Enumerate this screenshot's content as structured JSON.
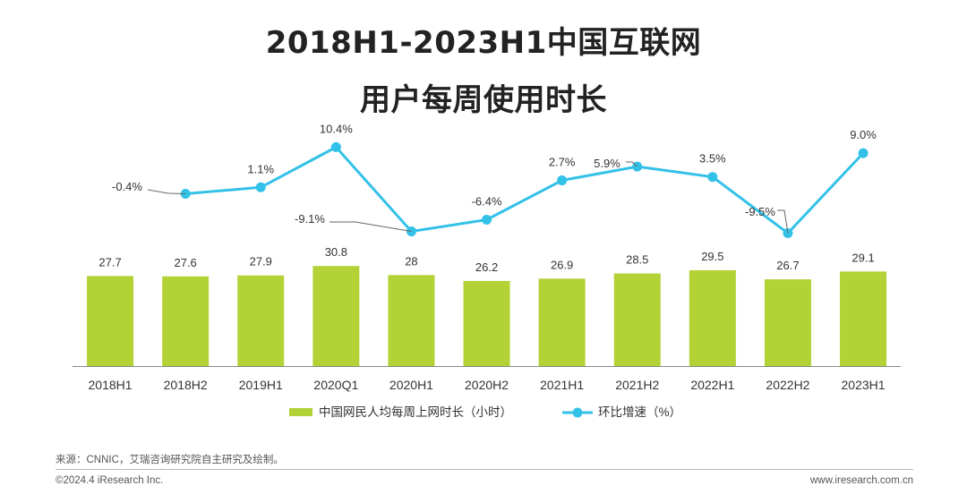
{
  "title": {
    "line1": "2018H1-2023H1中国互联网",
    "line2": "用户每周使用时长"
  },
  "chart_data": {
    "type": "bar",
    "categories": [
      "2018H1",
      "2018H2",
      "2019H1",
      "2020Q1",
      "2020H1",
      "2020H2",
      "2021H1",
      "2021H2",
      "2022H1",
      "2022H2",
      "2023H1"
    ],
    "series": [
      {
        "name": "中国网民人均每周上网时长（小时）",
        "type": "bar",
        "values": [
          27.7,
          27.6,
          27.9,
          30.8,
          28,
          26.2,
          26.9,
          28.5,
          29.5,
          26.7,
          29.1
        ],
        "labels": [
          "27.7",
          "27.6",
          "27.9",
          "30.8",
          "28",
          "26.2",
          "26.9",
          "28.5",
          "29.5",
          "26.7",
          "29.1"
        ]
      },
      {
        "name": "环比增速（%）",
        "type": "line",
        "values": [
          null,
          -0.4,
          1.1,
          10.4,
          -9.1,
          -6.4,
          2.7,
          5.9,
          3.5,
          -9.5,
          9.0
        ],
        "labels": [
          "",
          "-0.4%",
          "1.1%",
          "10.4%",
          "-9.1%",
          "-6.4%",
          "2.7%",
          "5.9%",
          "3.5%",
          "-9.5%",
          "9.0%"
        ]
      }
    ],
    "legend_position": "bottom",
    "grid": false,
    "colors": {
      "bar": "#b2d235",
      "line": "#33c1e8",
      "leader": "#666666"
    }
  },
  "footer": {
    "source": "来源：CNNIC，艾瑞咨询研究院自主研究及绘制。",
    "copyright": "©2024.4 iResearch Inc.",
    "website": "www.iresearch.com.cn"
  }
}
